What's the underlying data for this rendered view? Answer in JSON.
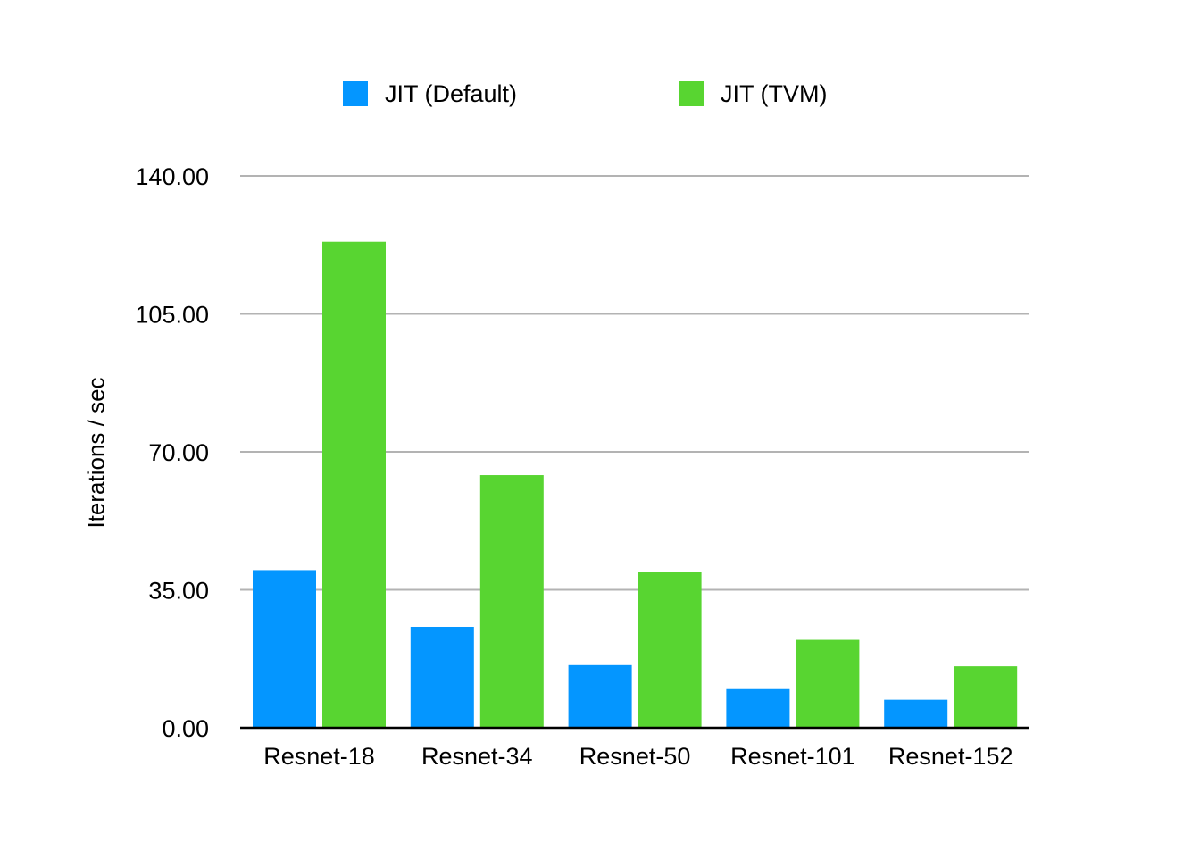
{
  "chart_data": {
    "type": "bar",
    "title": "",
    "xlabel": "",
    "ylabel": "Iterations / sec",
    "ylim": [
      0,
      140
    ],
    "yticks": [
      "0.00",
      "35.00",
      "70.00",
      "105.00",
      "140.00"
    ],
    "categories": [
      "Resnet-18",
      "Resnet-34",
      "Resnet-50",
      "Resnet-101",
      "Resnet-152"
    ],
    "series": [
      {
        "name": "JIT (Default)",
        "color": "#0496ff",
        "values": [
          40.0,
          25.6,
          15.9,
          9.8,
          7.1
        ]
      },
      {
        "name": "JIT (TVM)",
        "color": "#58d531",
        "values": [
          123.3,
          64.1,
          39.5,
          22.3,
          15.6
        ]
      }
    ],
    "grid": true,
    "legend_position": "top"
  }
}
